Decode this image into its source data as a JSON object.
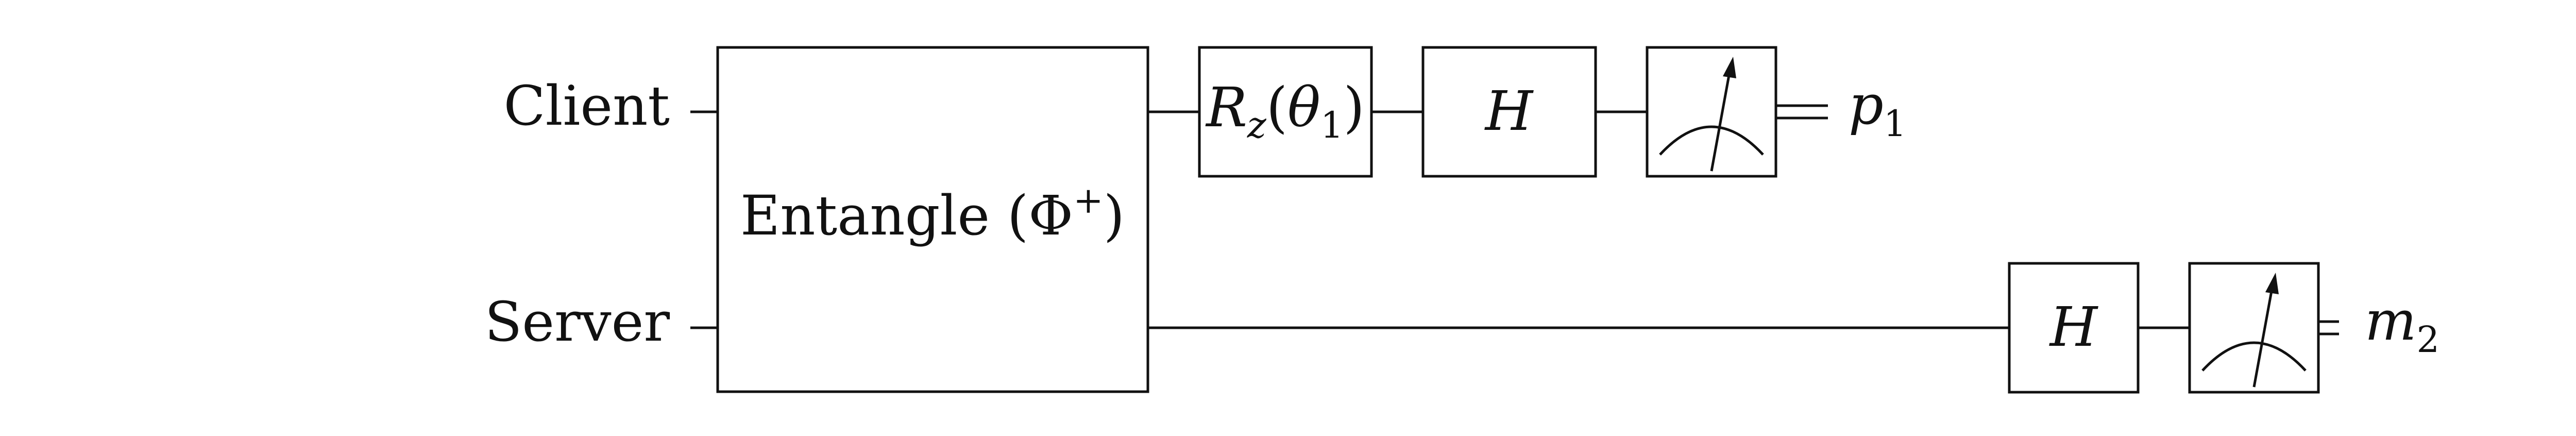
{
  "qubits": [
    {
      "label": "Client"
    },
    {
      "label": "Server"
    }
  ],
  "gates": {
    "entangle": {
      "label": "Entangle",
      "state": "Φ",
      "superscript": "+"
    },
    "client_rz": {
      "symbol": "R",
      "subscript": "z",
      "arg": "θ",
      "arg_sub": "1"
    },
    "client_h": {
      "label": "H"
    },
    "server_h": {
      "label": "H"
    }
  },
  "measurements": [
    {
      "icon": "meter-icon",
      "output": "p",
      "output_sub": "1"
    },
    {
      "icon": "meter-icon",
      "output": "m",
      "output_sub": "2"
    }
  ]
}
